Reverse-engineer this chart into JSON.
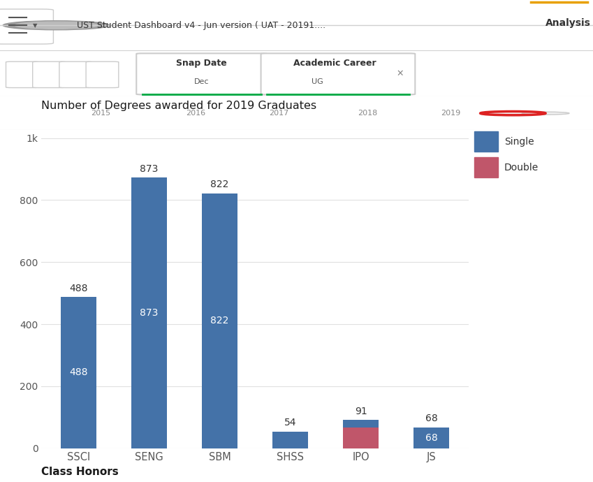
{
  "categories": [
    "SSCI",
    "SENG",
    "SBM",
    "SHSS",
    "IPO",
    "JS"
  ],
  "single_values": [
    488,
    873,
    822,
    54,
    23,
    68
  ],
  "double_values": [
    0,
    0,
    0,
    0,
    68,
    0
  ],
  "total_labels": [
    488,
    873,
    822,
    54,
    91,
    68
  ],
  "single_color": "#4472a8",
  "double_color": "#c0566a",
  "bg_color": "#ffffff",
  "ui_bg": "#f5f5f5",
  "header_bg": "#ffffff",
  "header_border": "#e0e0e0",
  "title": "Number of Degrees awarded for 2019 Graduates",
  "title_fontsize": 11.5,
  "title_color": "#1a1a1a",
  "subtitle": "Class Honors",
  "subtitle_fontsize": 11,
  "subtitle_color": "#1a1a1a",
  "ytick_labels": [
    "0",
    "200",
    "400",
    "600",
    "800",
    "1k"
  ],
  "ytick_vals": [
    0,
    200,
    400,
    600,
    800,
    1000
  ],
  "ylim": [
    0,
    1080
  ],
  "legend_single": "Single",
  "legend_double": "Double",
  "grid_color": "#e0e0e0",
  "tick_color": "#555555",
  "bar_width": 0.5,
  "inside_label_fontsize": 10,
  "outside_label_fontsize": 10,
  "inside_label_color": "#ffffff",
  "outside_label_color": "#333333",
  "header_text": "UST Student Dashboard v4 - Jun version ( UAT - 20191....",
  "header_right": "Analysis",
  "tab1": "Snap Date",
  "tab1_sub": "Dec",
  "tab2": "Academic Career",
  "tab2_sub": "UG",
  "orange_line_color": "#e8a000",
  "green_line_color": "#00aa44",
  "tab_bg": "#f0f0f0",
  "toolbar_bg": "#f8f8f8"
}
